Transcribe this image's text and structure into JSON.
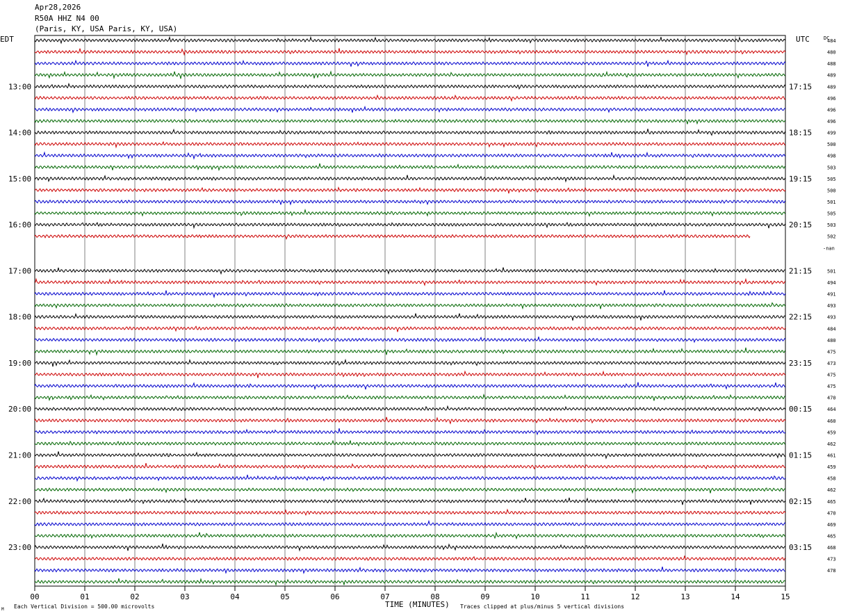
{
  "header": {
    "date": "Apr28,2026",
    "station": "R50A HHZ N4 00",
    "location": "(Paris, KY, USA Paris, KY, USA)"
  },
  "axes": {
    "left_zone": "EDT",
    "right_zone": "UTC",
    "dc_label": "DC",
    "xlabel": "TIME (MINUTES)",
    "x_ticks": [
      "00",
      "01",
      "02",
      "03",
      "04",
      "05",
      "06",
      "07",
      "08",
      "09",
      "10",
      "11",
      "12",
      "13",
      "14",
      "15"
    ]
  },
  "footer": {
    "scale": "Each Vertical Division =  500.00 microvolts",
    "clip": "Traces clipped at plus/minus 5 vertical divisions",
    "corner_mark": "M"
  },
  "colors": [
    "#000000",
    "#cc0000",
    "#0000cc",
    "#006600"
  ],
  "chart_data": {
    "type": "line",
    "xlabel": "TIME (MINUTES)",
    "xlim": [
      0,
      15
    ],
    "left_time_labels": [
      {
        "row": 4,
        "text": "13:00"
      },
      {
        "row": 8,
        "text": "14:00"
      },
      {
        "row": 12,
        "text": "15:00"
      },
      {
        "row": 16,
        "text": "16:00"
      },
      {
        "row": 20,
        "text": "17:00"
      },
      {
        "row": 24,
        "text": "18:00"
      },
      {
        "row": 28,
        "text": "19:00"
      },
      {
        "row": 32,
        "text": "20:00"
      },
      {
        "row": 36,
        "text": "21:00"
      },
      {
        "row": 40,
        "text": "22:00"
      },
      {
        "row": 44,
        "text": "23:00"
      }
    ],
    "right_time_labels": [
      {
        "row": 4,
        "text": "17:15"
      },
      {
        "row": 8,
        "text": "18:15"
      },
      {
        "row": 12,
        "text": "19:15"
      },
      {
        "row": 16,
        "text": "20:15"
      },
      {
        "row": 20,
        "text": "21:15"
      },
      {
        "row": 24,
        "text": "22:15"
      },
      {
        "row": 28,
        "text": "23:15"
      },
      {
        "row": 32,
        "text": "00:15"
      },
      {
        "row": 36,
        "text": "01:15"
      },
      {
        "row": 40,
        "text": "02:15"
      },
      {
        "row": 44,
        "text": "03:15"
      }
    ],
    "dc_offsets": [
      "484",
      "480",
      "488",
      "489",
      "489",
      "496",
      "496",
      "496",
      "499",
      "500",
      "498",
      "503",
      "505",
      "500",
      "501",
      "505",
      "503",
      "502",
      "-nan",
      "501",
      "494",
      "491",
      "493",
      "493",
      "484",
      "480",
      "475",
      "473",
      "475",
      "475",
      "470",
      "464",
      "460",
      "459",
      "462",
      "461",
      "459",
      "458",
      "462",
      "465",
      "470",
      "469",
      "465",
      "468",
      "473",
      "478"
    ],
    "trace_rows": 48,
    "empty_rows": [
      18,
      19
    ],
    "partial_row": {
      "row": 17,
      "end_minute": 14.3
    }
  }
}
